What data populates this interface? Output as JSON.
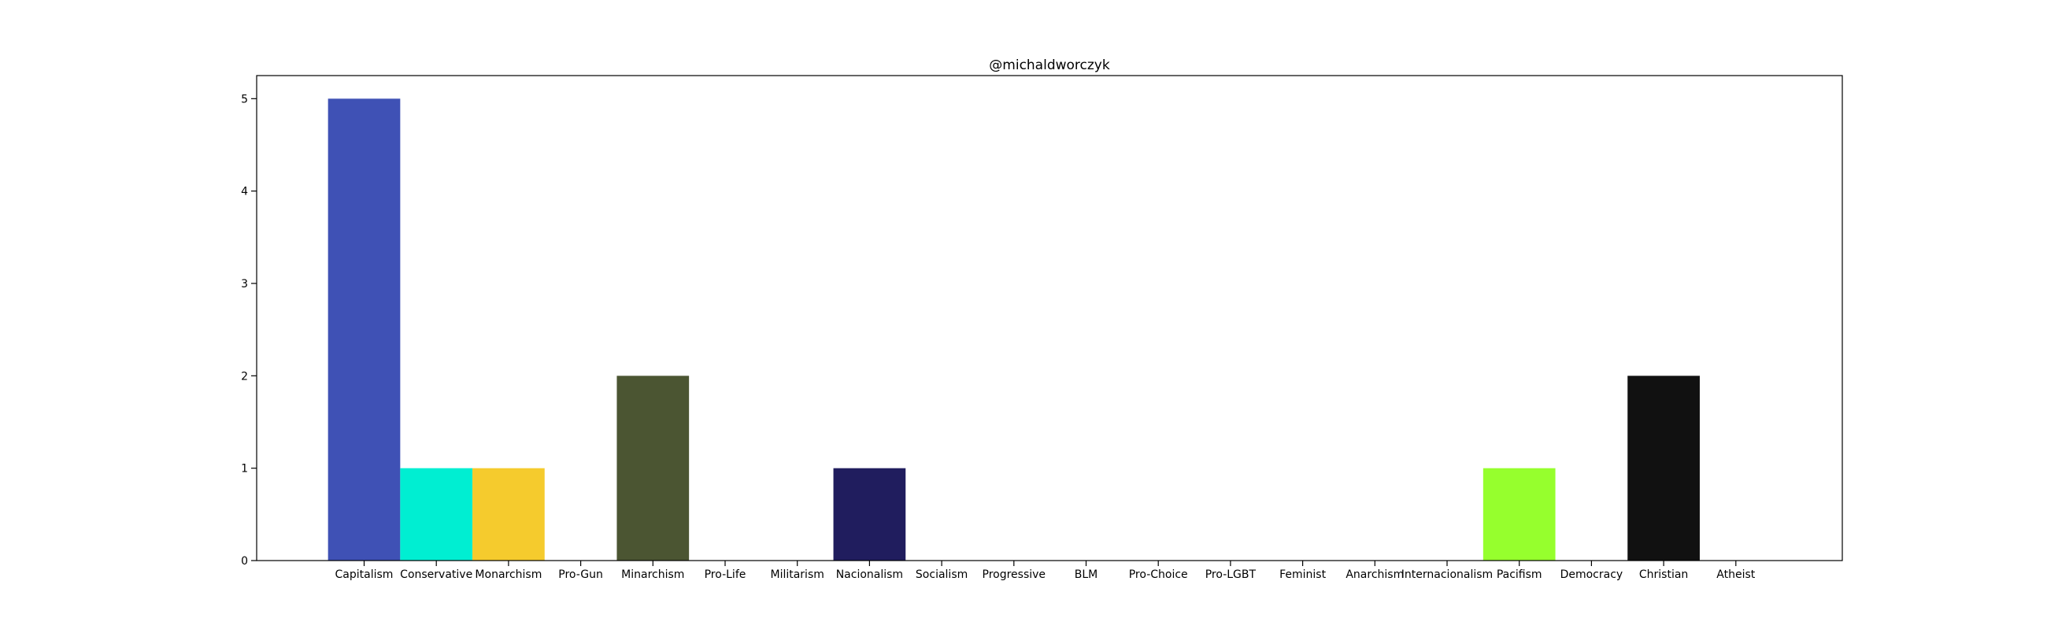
{
  "chart_data": {
    "type": "bar",
    "title": "@michaldworczyk",
    "xlabel": "",
    "ylabel": "",
    "ylim": [
      0,
      5.25
    ],
    "yticks": [
      0,
      1,
      2,
      3,
      4,
      5
    ],
    "grid": false,
    "categories": [
      "Capitalism",
      "Conservative",
      "Monarchism",
      "Pro-Gun",
      "Minarchism",
      "Pro-Life",
      "Militarism",
      "Nacionalism",
      "Socialism",
      "Progressive",
      "BLM",
      "Pro-Choice",
      "Pro-LGBT",
      "Feminist",
      "Anarchism",
      "Internacionalism",
      "Pacifism",
      "Democracy",
      "Christian",
      "Atheist"
    ],
    "values": [
      5,
      1,
      1,
      0,
      2,
      0,
      0,
      1,
      0,
      0,
      0,
      0,
      0,
      0,
      0,
      0,
      1,
      0,
      2,
      0
    ],
    "colors": [
      "#3f51b5",
      "#00eed2",
      "#f5cb2d",
      "#ffffff",
      "#4b5532",
      "#ffffff",
      "#ffffff",
      "#201d5e",
      "#ffffff",
      "#ffffff",
      "#ffffff",
      "#ffffff",
      "#ffffff",
      "#ffffff",
      "#ffffff",
      "#ffffff",
      "#96ff2d",
      "#ffffff",
      "#111111",
      "#ffffff"
    ]
  }
}
